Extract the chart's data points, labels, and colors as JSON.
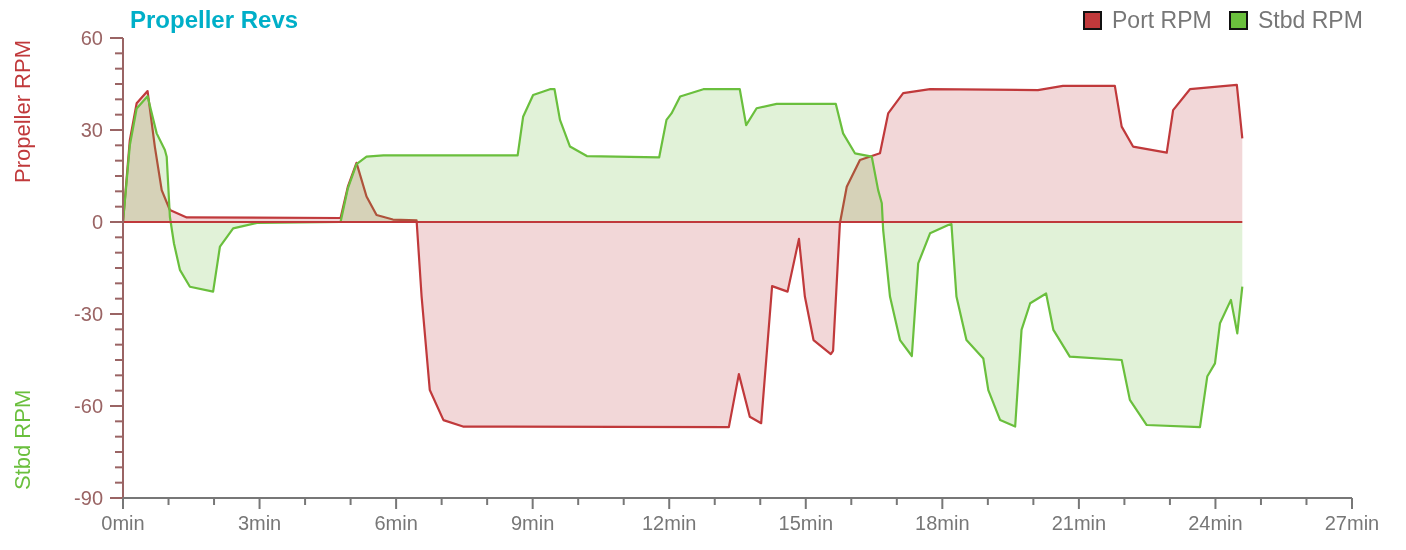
{
  "chart_data": {
    "type": "area",
    "title": "Propeller Revs",
    "ylabel": "Propeller RPM",
    "annotations": [
      "Stbd RPM"
    ],
    "xlim": [
      0,
      27
    ],
    "ylim": [
      -90,
      60
    ],
    "xticks": [
      {
        "value": 0,
        "label": "0min"
      },
      {
        "value": 1,
        "label": null
      },
      {
        "value": 2,
        "label": null
      },
      {
        "value": 3,
        "label": "3min"
      },
      {
        "value": 4,
        "label": null
      },
      {
        "value": 5,
        "label": null
      },
      {
        "value": 6,
        "label": "6min"
      },
      {
        "value": 7,
        "label": null
      },
      {
        "value": 8,
        "label": null
      },
      {
        "value": 9,
        "label": "9min"
      },
      {
        "value": 10,
        "label": null
      },
      {
        "value": 11,
        "label": null
      },
      {
        "value": 12,
        "label": "12min"
      },
      {
        "value": 13,
        "label": null
      },
      {
        "value": 14,
        "label": null
      },
      {
        "value": 15,
        "label": "15min"
      },
      {
        "value": 16,
        "label": null
      },
      {
        "value": 17,
        "label": null
      },
      {
        "value": 18,
        "label": "18min"
      },
      {
        "value": 19,
        "label": null
      },
      {
        "value": 20,
        "label": null
      },
      {
        "value": 21,
        "label": "21min"
      },
      {
        "value": 22,
        "label": null
      },
      {
        "value": 23,
        "label": null
      },
      {
        "value": 24,
        "label": "24min"
      },
      {
        "value": 25,
        "label": null
      },
      {
        "value": 26,
        "label": null
      },
      {
        "value": 27,
        "label": "27min"
      }
    ],
    "yticks": [
      -90,
      {
        "value": -85,
        "label": null
      },
      {
        "value": -80,
        "label": null
      },
      {
        "value": -75,
        "label": null
      },
      {
        "value": -70,
        "label": null
      },
      {
        "value": -65,
        "label": null
      },
      -60,
      {
        "value": -55,
        "label": null
      },
      {
        "value": -50,
        "label": null
      },
      {
        "value": -45,
        "label": null
      },
      {
        "value": -40,
        "label": null
      },
      {
        "value": -35,
        "label": null
      },
      -30,
      {
        "value": -25,
        "label": null
      },
      {
        "value": -20,
        "label": null
      },
      {
        "value": -15,
        "label": null
      },
      {
        "value": -10,
        "label": null
      },
      {
        "value": -5,
        "label": null
      },
      0,
      {
        "value": 5,
        "label": null
      },
      {
        "value": 10,
        "label": null
      },
      {
        "value": 15,
        "label": null
      },
      {
        "value": 20,
        "label": null
      },
      {
        "value": 25,
        "label": null
      },
      30,
      {
        "value": 35,
        "label": null
      },
      {
        "value": 40,
        "label": null
      },
      {
        "value": 45,
        "label": null
      },
      {
        "value": 50,
        "label": null
      },
      {
        "value": 55,
        "label": null
      },
      60
    ],
    "legend": "top right",
    "grid": false,
    "marker": "none",
    "line_style": "solid",
    "ref_lines": [
      {
        "axis": "y",
        "value": 0,
        "color": "#c0393b"
      }
    ],
    "series": [
      {
        "name": "Port RPM",
        "color": "#c0393b",
        "x": [
          0,
          0.15,
          0.3,
          0.54,
          0.7,
          0.85,
          1.03,
          1.4,
          4.78,
          4.94,
          5.13,
          5.35,
          5.57,
          5.93,
          6.45,
          6.56,
          6.74,
          7.04,
          7.47,
          13.31,
          13.53,
          13.77,
          14.02,
          14.26,
          14.6,
          14.85,
          14.98,
          15.17,
          15.55,
          15.6,
          15.75,
          15.9,
          16.19,
          16.63,
          16.81,
          17.14,
          17.73,
          20.1,
          20.65,
          21.79,
          21.94,
          22.19,
          22.93,
          23.07,
          23.44,
          24.47,
          24.59
        ],
        "values": [
          0,
          26.7,
          38.7,
          42.7,
          24.5,
          10.4,
          3.9,
          1.5,
          1.3,
          11.5,
          19.3,
          8.3,
          2.3,
          0.8,
          0.5,
          -24.3,
          -54.8,
          -64.6,
          -66.7,
          -66.9,
          -49.6,
          -63.5,
          -65.6,
          -20.9,
          -22.7,
          -5.5,
          -24.3,
          -38.5,
          -43.1,
          -42,
          -0.4,
          11.5,
          20.2,
          22.4,
          35.4,
          42,
          43.3,
          43,
          44.4,
          44.4,
          31.1,
          24.6,
          22.6,
          36.5,
          43.3,
          44.7,
          27.3
        ]
      },
      {
        "name": "Stbd RPM",
        "color": "#6abf3d",
        "x": [
          0,
          0.15,
          0.3,
          0.54,
          0.74,
          0.92,
          0.96,
          1.03,
          1.12,
          1.25,
          1.47,
          1.98,
          2.13,
          2.42,
          2.94,
          4.78,
          4.94,
          5.13,
          5.35,
          5.72,
          8.67,
          8.79,
          9.01,
          9.38,
          9.48,
          9.6,
          9.82,
          10.19,
          11.78,
          11.94,
          12.05,
          12.24,
          12.75,
          13.55,
          13.69,
          13.92,
          14.36,
          15.66,
          15.82,
          16.08,
          16.45,
          16.59,
          16.67,
          16.7,
          16.85,
          17.07,
          17.33,
          17.47,
          17.73,
          18.13,
          18.2,
          18.31,
          18.53,
          18.9,
          19.01,
          19.27,
          19.6,
          19.74,
          19.93,
          20.28,
          20.44,
          20.8,
          21.94,
          22.12,
          22.49,
          23.66,
          23.82,
          23.99,
          24.1,
          24.34,
          24.48,
          24.59
        ],
        "values": [
          0,
          25,
          37,
          41,
          28.9,
          23.5,
          21.3,
          1.7,
          -7,
          -15.6,
          -21.1,
          -22.7,
          -8,
          -2.1,
          -0.3,
          0,
          11,
          18.9,
          21.3,
          21.7,
          21.7,
          34.3,
          41.4,
          43.3,
          43.3,
          33.3,
          24.6,
          21.5,
          21.1,
          33.3,
          35.4,
          40.9,
          43.3,
          43.3,
          31.6,
          37.1,
          38.5,
          38.5,
          28.9,
          22.4,
          21.3,
          10.4,
          6.1,
          -2.6,
          -24.3,
          -38.5,
          -43.7,
          -13.5,
          -3.7,
          -1,
          -0.7,
          -24.3,
          -38.5,
          -44.5,
          -54.8,
          -64.6,
          -66.7,
          -35.2,
          -26.5,
          -23.3,
          -35.2,
          -43.9,
          -45,
          -58,
          -66.2,
          -66.9,
          -50.4,
          -46.1,
          -33,
          -25.4,
          -36.3,
          -21.1
        ]
      }
    ]
  }
}
